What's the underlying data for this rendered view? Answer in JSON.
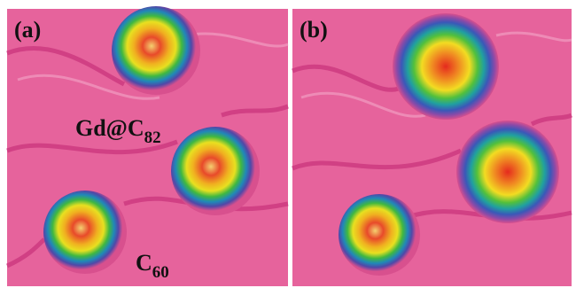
{
  "panels": [
    {
      "label": "(a)"
    },
    {
      "label": "(b)"
    }
  ],
  "annotations": {
    "molecule_large": {
      "base": "Gd@C",
      "subscript": "82"
    },
    "molecule_small": {
      "base": "C",
      "subscript": "60"
    }
  }
}
